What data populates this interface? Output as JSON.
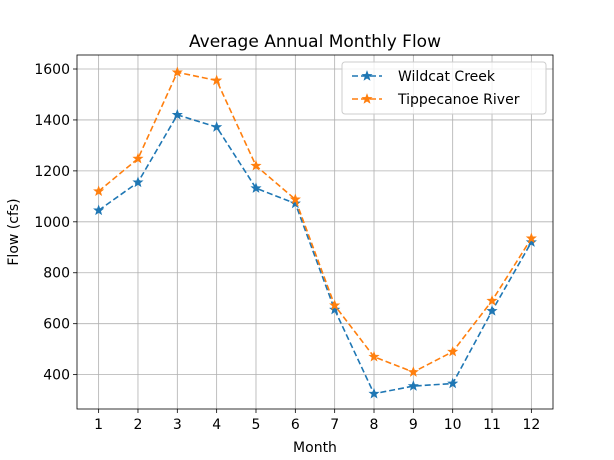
{
  "chart_data": {
    "type": "line",
    "title": "Average Annual Monthly Flow",
    "xlabel": "Month",
    "ylabel": "Flow (cfs)",
    "x": [
      1,
      2,
      3,
      4,
      5,
      6,
      7,
      8,
      9,
      10,
      11,
      12
    ],
    "xlim": [
      0.45,
      12.55
    ],
    "ylim": [
      265,
      1655
    ],
    "yticks": [
      400,
      600,
      800,
      1000,
      1200,
      1400,
      1600
    ],
    "grid": true,
    "legend_position": "top-right",
    "marker": "star",
    "line_style": "dashed",
    "series": [
      {
        "name": "Wildcat Creek",
        "color": "#1f77b4",
        "values": [
          1045,
          1155,
          1420,
          1372,
          1132,
          1072,
          655,
          325,
          355,
          365,
          650,
          920
        ]
      },
      {
        "name": "Tippecanoe River",
        "color": "#ff7f0e",
        "values": [
          1120,
          1248,
          1587,
          1555,
          1220,
          1088,
          672,
          470,
          410,
          490,
          690,
          935
        ]
      }
    ]
  }
}
